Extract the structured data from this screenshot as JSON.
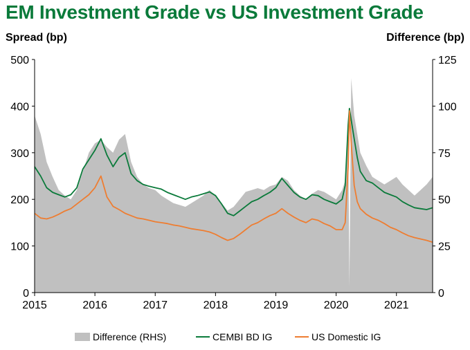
{
  "chart_data": {
    "type": "line",
    "title": "EM Investment Grade vs US Investment Grade",
    "ylabel_left": "Spread (bp)",
    "ylabel_right": "Difference (bp)",
    "ylim_left": [
      0,
      500
    ],
    "ylim_right": [
      0,
      125
    ],
    "yticks_left": [
      "500",
      "400",
      "300",
      "200",
      "100",
      "0"
    ],
    "yticks_right": [
      "125",
      "100",
      "75",
      "50",
      "25",
      "0"
    ],
    "xlim": [
      2015.0,
      2021.6
    ],
    "xticks": [
      "2015",
      "2016",
      "2017",
      "2018",
      "2019",
      "2020",
      "2021"
    ],
    "x": [
      2015.0,
      2015.1,
      2015.2,
      2015.3,
      2015.4,
      2015.5,
      2015.6,
      2015.7,
      2015.8,
      2015.9,
      2016.0,
      2016.1,
      2016.2,
      2016.3,
      2016.4,
      2016.5,
      2016.6,
      2016.7,
      2016.8,
      2016.9,
      2017.0,
      2017.1,
      2017.2,
      2017.3,
      2017.4,
      2017.5,
      2017.6,
      2017.7,
      2017.8,
      2017.9,
      2018.0,
      2018.1,
      2018.2,
      2018.3,
      2018.4,
      2018.5,
      2018.6,
      2018.7,
      2018.8,
      2018.9,
      2019.0,
      2019.1,
      2019.2,
      2019.3,
      2019.4,
      2019.5,
      2019.6,
      2019.7,
      2019.8,
      2019.9,
      2020.0,
      2020.1,
      2020.15,
      2020.2,
      2020.22,
      2020.25,
      2020.3,
      2020.35,
      2020.4,
      2020.5,
      2020.6,
      2020.7,
      2020.8,
      2020.9,
      2021.0,
      2021.1,
      2021.2,
      2021.3,
      2021.4,
      2021.5,
      2021.6
    ],
    "series": [
      {
        "name": "Difference (RHS)",
        "axis": "right",
        "style": "area",
        "color": "#c0c0c0",
        "values": [
          95,
          85,
          70,
          62,
          55,
          52,
          50,
          55,
          65,
          75,
          80,
          82,
          78,
          75,
          82,
          85,
          70,
          62,
          58,
          56,
          55,
          52,
          50,
          48,
          47,
          46,
          48,
          50,
          52,
          55,
          52,
          48,
          44,
          46,
          50,
          54,
          55,
          56,
          55,
          57,
          58,
          62,
          60,
          55,
          52,
          50,
          53,
          55,
          54,
          52,
          50,
          55,
          60,
          90,
          3,
          115,
          95,
          85,
          75,
          68,
          62,
          60,
          58,
          60,
          62,
          58,
          55,
          52,
          55,
          58,
          62
        ]
      },
      {
        "name": "CEMBI BD IG",
        "axis": "left",
        "style": "line",
        "color": "#0a7a3a",
        "values": [
          270,
          250,
          225,
          215,
          210,
          205,
          210,
          225,
          265,
          285,
          305,
          330,
          295,
          270,
          290,
          300,
          255,
          240,
          232,
          228,
          225,
          222,
          215,
          210,
          205,
          200,
          205,
          208,
          212,
          216,
          208,
          190,
          170,
          165,
          175,
          185,
          195,
          200,
          208,
          215,
          225,
          245,
          230,
          215,
          205,
          200,
          210,
          208,
          200,
          195,
          190,
          200,
          230,
          360,
          395,
          370,
          330,
          290,
          260,
          240,
          235,
          225,
          215,
          210,
          205,
          195,
          188,
          182,
          180,
          178,
          182
        ]
      },
      {
        "name": "US Domestic IG",
        "axis": "left",
        "style": "line",
        "color": "#ee7d31",
        "values": [
          170,
          160,
          158,
          162,
          168,
          175,
          180,
          190,
          200,
          210,
          225,
          250,
          205,
          185,
          178,
          170,
          165,
          160,
          158,
          155,
          152,
          150,
          148,
          145,
          143,
          140,
          137,
          135,
          133,
          130,
          125,
          118,
          112,
          116,
          125,
          135,
          145,
          150,
          158,
          165,
          170,
          180,
          170,
          162,
          155,
          150,
          158,
          155,
          148,
          143,
          135,
          135,
          150,
          270,
          390,
          320,
          230,
          195,
          180,
          168,
          160,
          155,
          148,
          140,
          135,
          128,
          122,
          118,
          115,
          112,
          108
        ]
      }
    ],
    "legend": [
      "Difference (RHS)",
      "CEMBI BD IG",
      "US Domestic IG"
    ],
    "legend_position": "bottom-center",
    "grid": false
  }
}
